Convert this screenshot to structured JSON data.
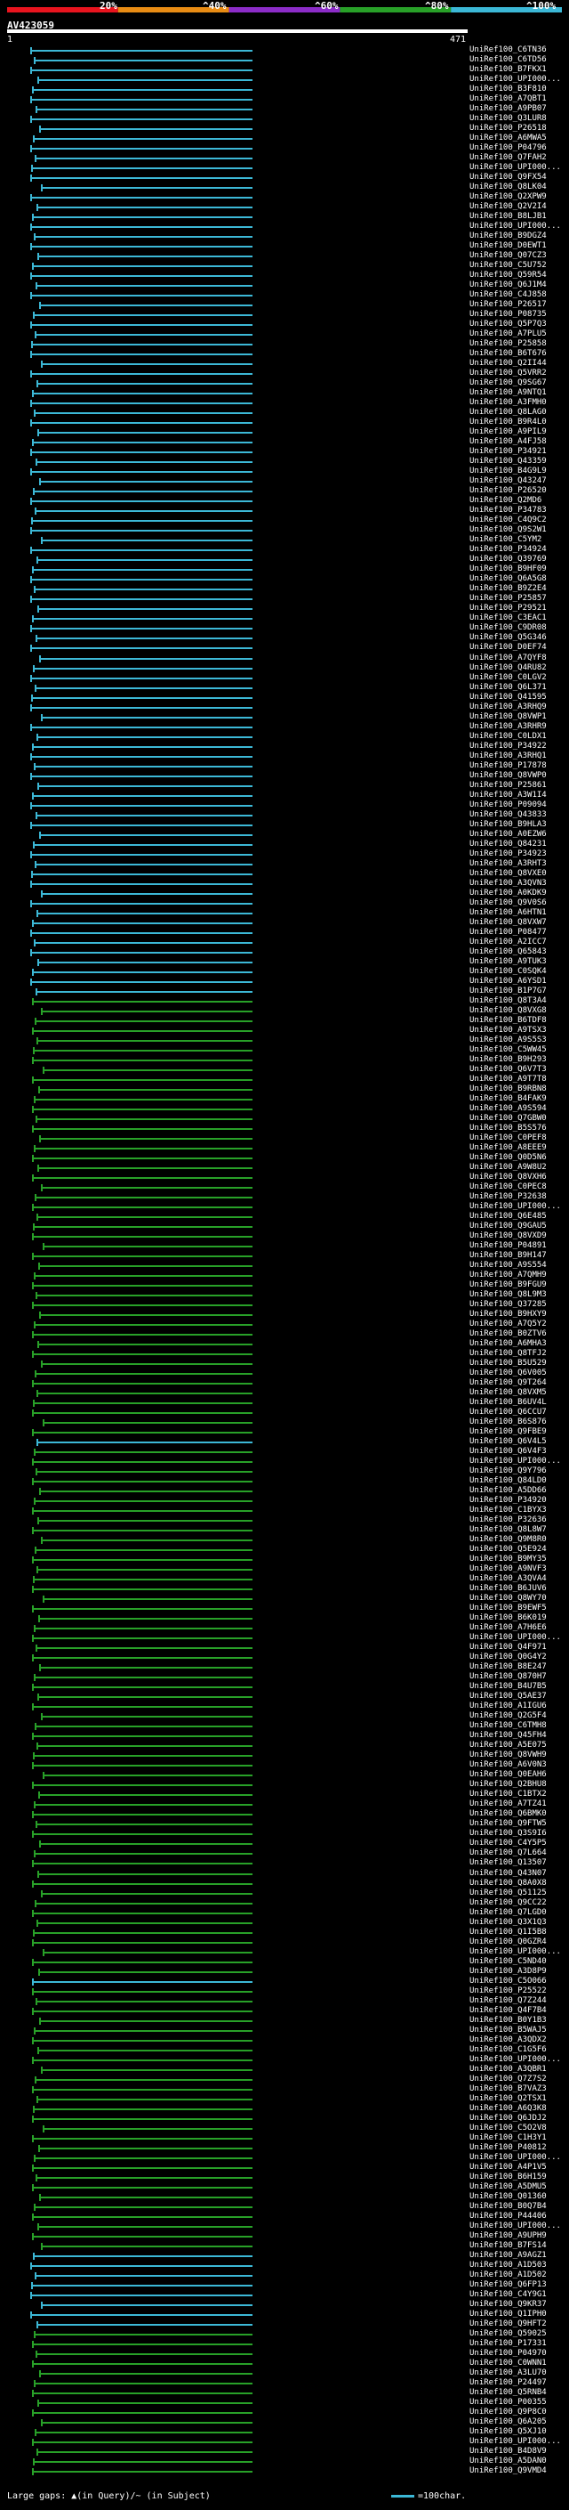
{
  "legend": {
    "labels": [
      "20%",
      "^40%",
      "^60%",
      "^80%",
      "^100%"
    ],
    "colors": [
      "#e8141e",
      "#e88c14",
      "#8c2cc8",
      "#28a028",
      "#3cb8d6"
    ]
  },
  "query": {
    "name": "AV423059",
    "start": "1",
    "end": "471"
  },
  "hits": [
    {
      "id": "UniRef100_C6TN36",
      "color": "cyan"
    },
    {
      "id": "UniRef100_C6TD56",
      "color": "cyan"
    },
    {
      "id": "UniRef100_B7FKX1",
      "color": "cyan"
    },
    {
      "id": "UniRef100_UPI000...",
      "color": "cyan"
    },
    {
      "id": "UniRef100_B3F810",
      "color": "cyan"
    },
    {
      "id": "UniRef100_A7QBT1",
      "color": "cyan"
    },
    {
      "id": "UniRef100_A9PB07",
      "color": "cyan"
    },
    {
      "id": "UniRef100_Q3LUR8",
      "color": "cyan"
    },
    {
      "id": "UniRef100_P26518",
      "color": "cyan"
    },
    {
      "id": "UniRef100_A6MWA5",
      "color": "cyan"
    },
    {
      "id": "UniRef100_P04796",
      "color": "cyan"
    },
    {
      "id": "UniRef100_Q7FAH2",
      "color": "cyan"
    },
    {
      "id": "UniRef100_UPI000...",
      "color": "cyan"
    },
    {
      "id": "UniRef100_Q9FX54",
      "color": "cyan"
    },
    {
      "id": "UniRef100_Q8LK04",
      "color": "cyan"
    },
    {
      "id": "UniRef100_Q2XPW9",
      "color": "cyan"
    },
    {
      "id": "UniRef100_Q2V2I4",
      "color": "cyan"
    },
    {
      "id": "UniRef100_B8LJB1",
      "color": "cyan"
    },
    {
      "id": "UniRef100_UPI000...",
      "color": "cyan"
    },
    {
      "id": "UniRef100_B9DGZ4",
      "color": "cyan"
    },
    {
      "id": "UniRef100_D0EWT1",
      "color": "cyan"
    },
    {
      "id": "UniRef100_Q07CZ3",
      "color": "cyan"
    },
    {
      "id": "UniRef100_C5U752",
      "color": "cyan"
    },
    {
      "id": "UniRef100_Q59R54",
      "color": "cyan"
    },
    {
      "id": "UniRef100_Q6J1M4",
      "color": "cyan"
    },
    {
      "id": "UniRef100_C4J858",
      "color": "cyan"
    },
    {
      "id": "UniRef100_P26517",
      "color": "cyan"
    },
    {
      "id": "UniRef100_P08735",
      "color": "cyan"
    },
    {
      "id": "UniRef100_Q5P7Q3",
      "color": "cyan"
    },
    {
      "id": "UniRef100_A7PLU5",
      "color": "cyan"
    },
    {
      "id": "UniRef100_P25858",
      "color": "cyan"
    },
    {
      "id": "UniRef100_B6T676",
      "color": "cyan"
    },
    {
      "id": "UniRef100_Q2II44",
      "color": "cyan"
    },
    {
      "id": "UniRef100_Q5VRR2",
      "color": "cyan"
    },
    {
      "id": "UniRef100_Q9SG67",
      "color": "cyan"
    },
    {
      "id": "UniRef100_A9NTQ1",
      "color": "cyan"
    },
    {
      "id": "UniRef100_A3FMH0",
      "color": "cyan"
    },
    {
      "id": "UniRef100_Q8LAG0",
      "color": "cyan"
    },
    {
      "id": "UniRef100_B9R4L0",
      "color": "cyan"
    },
    {
      "id": "UniRef100_A9PIL9",
      "color": "cyan"
    },
    {
      "id": "UniRef100_A4FJ58",
      "color": "cyan"
    },
    {
      "id": "UniRef100_P34921",
      "color": "cyan"
    },
    {
      "id": "UniRef100_Q43359",
      "color": "cyan"
    },
    {
      "id": "UniRef100_B4G9L9",
      "color": "cyan"
    },
    {
      "id": "UniRef100_Q43247",
      "color": "cyan"
    },
    {
      "id": "UniRef100_P26520",
      "color": "cyan"
    },
    {
      "id": "UniRef100_Q2MD6",
      "color": "cyan"
    },
    {
      "id": "UniRef100_P34783",
      "color": "cyan"
    },
    {
      "id": "UniRef100_C4Q9C2",
      "color": "cyan"
    },
    {
      "id": "UniRef100_Q9S2W1",
      "color": "cyan"
    },
    {
      "id": "UniRef100_C5YM2",
      "color": "cyan"
    },
    {
      "id": "UniRef100_P34924",
      "color": "cyan"
    },
    {
      "id": "UniRef100_Q39769",
      "color": "cyan"
    },
    {
      "id": "UniRef100_B9HF09",
      "color": "cyan"
    },
    {
      "id": "UniRef100_Q6A5G8",
      "color": "cyan"
    },
    {
      "id": "UniRef100_B9Z2E4",
      "color": "cyan"
    },
    {
      "id": "UniRef100_P25857",
      "color": "cyan"
    },
    {
      "id": "UniRef100_P29521",
      "color": "cyan"
    },
    {
      "id": "UniRef100_C3EAC1",
      "color": "cyan"
    },
    {
      "id": "UniRef100_C9DR08",
      "color": "cyan"
    },
    {
      "id": "UniRef100_Q5G346",
      "color": "cyan"
    },
    {
      "id": "UniRef100_D0EF74",
      "color": "cyan"
    },
    {
      "id": "UniRef100_A7QYF8",
      "color": "cyan"
    },
    {
      "id": "UniRef100_Q4RU82",
      "color": "cyan"
    },
    {
      "id": "UniRef100_C0LGV2",
      "color": "cyan"
    },
    {
      "id": "UniRef100_Q6L371",
      "color": "cyan"
    },
    {
      "id": "UniRef100_Q41595",
      "color": "cyan"
    },
    {
      "id": "UniRef100_A3RHQ9",
      "color": "cyan"
    },
    {
      "id": "UniRef100_Q8VWP1",
      "color": "cyan"
    },
    {
      "id": "UniRef100_A3RHR9",
      "color": "cyan"
    },
    {
      "id": "UniRef100_C0LDX1",
      "color": "cyan"
    },
    {
      "id": "UniRef100_P34922",
      "color": "cyan"
    },
    {
      "id": "UniRef100_A3RHQ1",
      "color": "cyan"
    },
    {
      "id": "UniRef100_P17878",
      "color": "cyan"
    },
    {
      "id": "UniRef100_Q8VWP0",
      "color": "cyan"
    },
    {
      "id": "UniRef100_P25861",
      "color": "cyan"
    },
    {
      "id": "UniRef100_A3W1I4",
      "color": "cyan"
    },
    {
      "id": "UniRef100_P09094",
      "color": "cyan"
    },
    {
      "id": "UniRef100_Q43833",
      "color": "cyan"
    },
    {
      "id": "UniRef100_B9HLA3",
      "color": "cyan"
    },
    {
      "id": "UniRef100_A0EZW6",
      "color": "cyan"
    },
    {
      "id": "UniRef100_Q84231",
      "color": "cyan"
    },
    {
      "id": "UniRef100_P34923",
      "color": "cyan"
    },
    {
      "id": "UniRef100_A3RHT3",
      "color": "cyan"
    },
    {
      "id": "UniRef100_Q8VXE0",
      "color": "cyan"
    },
    {
      "id": "UniRef100_A3QVN3",
      "color": "cyan"
    },
    {
      "id": "UniRef100_A0KDK9",
      "color": "cyan"
    },
    {
      "id": "UniRef100_Q9V0S6",
      "color": "cyan"
    },
    {
      "id": "UniRef100_A6HTN1",
      "color": "cyan"
    },
    {
      "id": "UniRef100_Q8VXW7",
      "color": "cyan"
    },
    {
      "id": "UniRef100_P08477",
      "color": "cyan"
    },
    {
      "id": "UniRef100_A2ICC7",
      "color": "cyan"
    },
    {
      "id": "UniRef100_Q65843",
      "color": "cyan"
    },
    {
      "id": "UniRef100_A9TUK3",
      "color": "cyan"
    },
    {
      "id": "UniRef100_C0SQK4",
      "color": "cyan"
    },
    {
      "id": "UniRef100_A6YSD1",
      "color": "cyan"
    },
    {
      "id": "UniRef100_B1P7G7",
      "color": "cyan"
    },
    {
      "id": "UniRef100_Q8T3A4",
      "color": "green"
    },
    {
      "id": "UniRef100_Q8VXG8",
      "color": "green"
    },
    {
      "id": "UniRef100_B6TDF8",
      "color": "green"
    },
    {
      "id": "UniRef100_A9TSX3",
      "color": "green"
    },
    {
      "id": "UniRef100_A9S5S3",
      "color": "green"
    },
    {
      "id": "UniRef100_C5WW45",
      "color": "green"
    },
    {
      "id": "UniRef100_B9H293",
      "color": "green"
    },
    {
      "id": "UniRef100_Q6V7T3",
      "color": "green"
    },
    {
      "id": "UniRef100_A9T7T8",
      "color": "green"
    },
    {
      "id": "UniRef100_B9RBN8",
      "color": "green"
    },
    {
      "id": "UniRef100_B4FAK9",
      "color": "green"
    },
    {
      "id": "UniRef100_A9S594",
      "color": "green"
    },
    {
      "id": "UniRef100_Q7GBW0",
      "color": "green"
    },
    {
      "id": "UniRef100_B5S576",
      "color": "green"
    },
    {
      "id": "UniRef100_C0PEF8",
      "color": "green"
    },
    {
      "id": "UniRef100_A8EEE9",
      "color": "green"
    },
    {
      "id": "UniRef100_Q0D5N6",
      "color": "green"
    },
    {
      "id": "UniRef100_A9W8U2",
      "color": "green"
    },
    {
      "id": "UniRef100_Q8VXH6",
      "color": "green"
    },
    {
      "id": "UniRef100_C0PEC8",
      "color": "green"
    },
    {
      "id": "UniRef100_P32638",
      "color": "green"
    },
    {
      "id": "UniRef100_UPI000...",
      "color": "green"
    },
    {
      "id": "UniRef100_Q6E485",
      "color": "green"
    },
    {
      "id": "UniRef100_Q9GAU5",
      "color": "green"
    },
    {
      "id": "UniRef100_Q8VXD9",
      "color": "green"
    },
    {
      "id": "UniRef100_P04891",
      "color": "green"
    },
    {
      "id": "UniRef100_B9H147",
      "color": "green"
    },
    {
      "id": "UniRef100_A9S554",
      "color": "green"
    },
    {
      "id": "UniRef100_A7QMH9",
      "color": "green"
    },
    {
      "id": "UniRef100_B9FGU9",
      "color": "green"
    },
    {
      "id": "UniRef100_Q8L9M3",
      "color": "green"
    },
    {
      "id": "UniRef100_Q37285",
      "color": "green"
    },
    {
      "id": "UniRef100_B9HXY9",
      "color": "green"
    },
    {
      "id": "UniRef100_A7Q5Y2",
      "color": "green"
    },
    {
      "id": "UniRef100_B0ZTV6",
      "color": "green"
    },
    {
      "id": "UniRef100_A6MHA3",
      "color": "green"
    },
    {
      "id": "UniRef100_Q8TFJ2",
      "color": "green"
    },
    {
      "id": "UniRef100_B5U529",
      "color": "green"
    },
    {
      "id": "UniRef100_Q6V005",
      "color": "green"
    },
    {
      "id": "UniRef100_Q9T264",
      "color": "green"
    },
    {
      "id": "UniRef100_Q8VXM5",
      "color": "green"
    },
    {
      "id": "UniRef100_B6UV4L",
      "color": "green"
    },
    {
      "id": "UniRef100_Q6CCU7",
      "color": "green"
    },
    {
      "id": "UniRef100_B6S876",
      "color": "green"
    },
    {
      "id": "UniRef100_Q9FBE9",
      "color": "green"
    },
    {
      "id": "UniRef100_Q6V4L5",
      "color": "cyan"
    },
    {
      "id": "UniRef100_Q6V4F3",
      "color": "green"
    },
    {
      "id": "UniRef100_UPI000...",
      "color": "green"
    },
    {
      "id": "UniRef100_Q9Y796",
      "color": "green"
    },
    {
      "id": "UniRef100_Q84LD0",
      "color": "green"
    },
    {
      "id": "UniRef100_A5DD66",
      "color": "green"
    },
    {
      "id": "UniRef100_P34920",
      "color": "green"
    },
    {
      "id": "UniRef100_C1BYX3",
      "color": "green"
    },
    {
      "id": "UniRef100_P32636",
      "color": "green"
    },
    {
      "id": "UniRef100_Q8L8W7",
      "color": "green"
    },
    {
      "id": "UniRef100_Q9M8R0",
      "color": "green"
    },
    {
      "id": "UniRef100_Q5E924",
      "color": "green"
    },
    {
      "id": "UniRef100_B9MY35",
      "color": "green"
    },
    {
      "id": "UniRef100_A9NVF3",
      "color": "green"
    },
    {
      "id": "UniRef100_A3QVA4",
      "color": "green"
    },
    {
      "id": "UniRef100_B6JUV6",
      "color": "green"
    },
    {
      "id": "UniRef100_Q8WY70",
      "color": "green"
    },
    {
      "id": "UniRef100_B9EWF5",
      "color": "green"
    },
    {
      "id": "UniRef100_B6K019",
      "color": "green"
    },
    {
      "id": "UniRef100_A7H6E6",
      "color": "green"
    },
    {
      "id": "UniRef100_UPI000...",
      "color": "green"
    },
    {
      "id": "UniRef100_Q4F971",
      "color": "green"
    },
    {
      "id": "UniRef100_Q0G4Y2",
      "color": "green"
    },
    {
      "id": "UniRef100_B8E247",
      "color": "green"
    },
    {
      "id": "UniRef100_Q870H7",
      "color": "green"
    },
    {
      "id": "UniRef100_B4U7B5",
      "color": "green"
    },
    {
      "id": "UniRef100_Q5AE37",
      "color": "green"
    },
    {
      "id": "UniRef100_A1IGU6",
      "color": "green"
    },
    {
      "id": "UniRef100_Q2G5F4",
      "color": "green"
    },
    {
      "id": "UniRef100_C6TMH8",
      "color": "green"
    },
    {
      "id": "UniRef100_Q45FH4",
      "color": "green"
    },
    {
      "id": "UniRef100_A5E075",
      "color": "green"
    },
    {
      "id": "UniRef100_Q8VWH9",
      "color": "green"
    },
    {
      "id": "UniRef100_A6V0N3",
      "color": "green"
    },
    {
      "id": "UniRef100_Q0EAH6",
      "color": "green"
    },
    {
      "id": "UniRef100_Q2BHU8",
      "color": "green"
    },
    {
      "id": "UniRef100_C1BTX2",
      "color": "green"
    },
    {
      "id": "UniRef100_A7TZ41",
      "color": "green"
    },
    {
      "id": "UniRef100_Q6BMK0",
      "color": "green"
    },
    {
      "id": "UniRef100_Q9FTW5",
      "color": "green"
    },
    {
      "id": "UniRef100_Q3S9I6",
      "color": "green"
    },
    {
      "id": "UniRef100_C4Y5P5",
      "color": "green"
    },
    {
      "id": "UniRef100_Q7L664",
      "color": "green"
    },
    {
      "id": "UniRef100_Q13507",
      "color": "green"
    },
    {
      "id": "UniRef100_Q43N07",
      "color": "green"
    },
    {
      "id": "UniRef100_Q8A0X8",
      "color": "green"
    },
    {
      "id": "UniRef100_Q51125",
      "color": "green"
    },
    {
      "id": "UniRef100_Q9CC22",
      "color": "green"
    },
    {
      "id": "UniRef100_Q7LGD0",
      "color": "green"
    },
    {
      "id": "UniRef100_Q3X1Q3",
      "color": "green"
    },
    {
      "id": "UniRef100_Q1I5B8",
      "color": "green"
    },
    {
      "id": "UniRef100_Q0GZR4",
      "color": "green"
    },
    {
      "id": "UniRef100_UPI000...",
      "color": "green"
    },
    {
      "id": "UniRef100_C5ND40",
      "color": "green"
    },
    {
      "id": "UniRef100_A3D8P9",
      "color": "green"
    },
    {
      "id": "UniRef100_C5O066",
      "color": "cyan"
    },
    {
      "id": "UniRef100_P25522",
      "color": "green"
    },
    {
      "id": "UniRef100_Q7Z244",
      "color": "green"
    },
    {
      "id": "UniRef100_Q4F7B4",
      "color": "green"
    },
    {
      "id": "UniRef100_B0Y1B3",
      "color": "green"
    },
    {
      "id": "UniRef100_B5WAJ5",
      "color": "green"
    },
    {
      "id": "UniRef100_A3QDX2",
      "color": "green"
    },
    {
      "id": "UniRef100_C1G5F6",
      "color": "green"
    },
    {
      "id": "UniRef100_UPI000...",
      "color": "green"
    },
    {
      "id": "UniRef100_A3QBR1",
      "color": "green"
    },
    {
      "id": "UniRef100_Q7Z7S2",
      "color": "green"
    },
    {
      "id": "UniRef100_B7VAZ3",
      "color": "green"
    },
    {
      "id": "UniRef100_Q2TSX1",
      "color": "green"
    },
    {
      "id": "UniRef100_A6Q3K8",
      "color": "green"
    },
    {
      "id": "UniRef100_Q6JDJ2",
      "color": "green"
    },
    {
      "id": "UniRef100_C5O2V8",
      "color": "green"
    },
    {
      "id": "UniRef100_C1H3Y1",
      "color": "green"
    },
    {
      "id": "UniRef100_P40812",
      "color": "green"
    },
    {
      "id": "UniRef100_UPI000...",
      "color": "green"
    },
    {
      "id": "UniRef100_A4P1V5",
      "color": "green"
    },
    {
      "id": "UniRef100_B6H159",
      "color": "green"
    },
    {
      "id": "UniRef100_A5DMU5",
      "color": "green"
    },
    {
      "id": "UniRef100_Q01360",
      "color": "green"
    },
    {
      "id": "UniRef100_B0Q7B4",
      "color": "green"
    },
    {
      "id": "UniRef100_P44406",
      "color": "green"
    },
    {
      "id": "UniRef100_UPI000...",
      "color": "green"
    },
    {
      "id": "UniRef100_A9UPH9",
      "color": "green"
    },
    {
      "id": "UniRef100_B7FS14",
      "color": "green"
    },
    {
      "id": "UniRef100_A9AGZ1",
      "color": "cyan"
    },
    {
      "id": "UniRef100_A1D503",
      "color": "cyan"
    },
    {
      "id": "UniRef100_A1D502",
      "color": "cyan"
    },
    {
      "id": "UniRef100_Q6FP13",
      "color": "cyan"
    },
    {
      "id": "UniRef100_C4Y9G1",
      "color": "cyan"
    },
    {
      "id": "UniRef100_Q9KR37",
      "color": "cyan"
    },
    {
      "id": "UniRef100_Q1IPH0",
      "color": "cyan"
    },
    {
      "id": "UniRef100_Q9HFT2",
      "color": "cyan"
    },
    {
      "id": "UniRef100_Q59025",
      "color": "green"
    },
    {
      "id": "UniRef100_P17331",
      "color": "green"
    },
    {
      "id": "UniRef100_P04970",
      "color": "green"
    },
    {
      "id": "UniRef100_C0WNN1",
      "color": "green"
    },
    {
      "id": "UniRef100_A3LU70",
      "color": "green"
    },
    {
      "id": "UniRef100_P24497",
      "color": "green"
    },
    {
      "id": "UniRef100_Q5RNB4",
      "color": "green"
    },
    {
      "id": "UniRef100_P00355",
      "color": "green"
    },
    {
      "id": "UniRef100_Q9P8C0",
      "color": "green"
    },
    {
      "id": "UniRef100_Q6A205",
      "color": "green"
    },
    {
      "id": "UniRef100_Q5XJ10",
      "color": "green"
    },
    {
      "id": "UniRef100_UPI000...",
      "color": "green"
    },
    {
      "id": "UniRef100_B4D8V9",
      "color": "green"
    },
    {
      "id": "UniRef100_A5DAN0",
      "color": "green"
    },
    {
      "id": "UniRef100_Q9VMD4",
      "color": "green"
    }
  ],
  "footer": {
    "gap_text": "Large gaps: ▲(in Query)/~ (in Subject)",
    "scale_text": "=100char."
  }
}
